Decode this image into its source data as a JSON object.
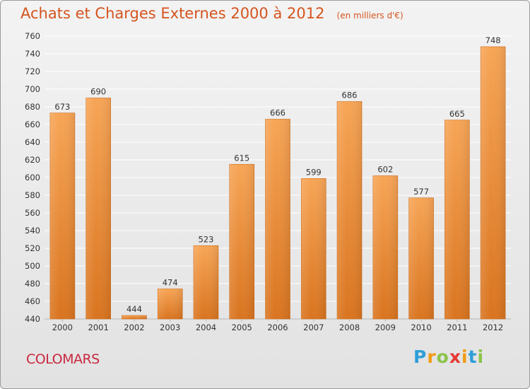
{
  "colors": {
    "title": "#d5541f",
    "commune": "#c8283f",
    "bar_light": "#f7a556",
    "bar_dark": "#d9741f",
    "grid": "#ffffff",
    "axis_text": "#333333"
  },
  "chart_data": {
    "type": "bar",
    "title": "Achats et Charges Externes 2000 à 2012",
    "subtitle": "(en milliers d'€)",
    "categories": [
      "2000",
      "2001",
      "2002",
      "2003",
      "2004",
      "2005",
      "2006",
      "2007",
      "2008",
      "2009",
      "2010",
      "2011",
      "2012"
    ],
    "values": [
      673,
      690,
      444,
      474,
      523,
      615,
      666,
      599,
      686,
      602,
      577,
      665,
      748
    ],
    "ylim": [
      440,
      760
    ],
    "yticks": [
      440,
      460,
      480,
      500,
      520,
      540,
      560,
      580,
      600,
      620,
      640,
      660,
      680,
      700,
      720,
      740,
      760
    ],
    "grid": true,
    "data_labels": true
  },
  "footer": {
    "commune": "COLOMARS",
    "logo": {
      "letters": [
        "P",
        "r",
        "o",
        "x",
        "i",
        "t",
        "i"
      ],
      "colors": [
        "#2e9fd8",
        "#f39c12",
        "#8bc34a",
        "#e53935",
        "#f39c12",
        "#2e9fd8",
        "#8bc34a"
      ]
    }
  }
}
